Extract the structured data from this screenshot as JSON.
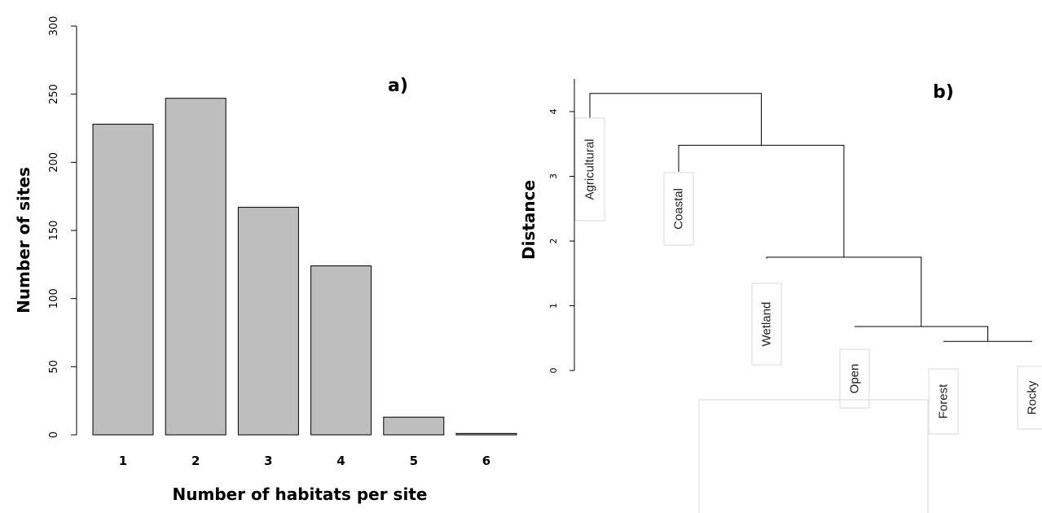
{
  "chart_data": [
    {
      "type": "bar",
      "panel_label": "a)",
      "categories": [
        "1",
        "2",
        "3",
        "4",
        "5",
        "6"
      ],
      "values": [
        228,
        247,
        167,
        124,
        13,
        1
      ],
      "xlabel": "Number of habitats per site",
      "ylabel": "Number of sites",
      "ylim": [
        0,
        300
      ],
      "yticks": [
        "0",
        "50",
        "100",
        "150",
        "200",
        "250",
        "300"
      ],
      "bar_color": "#bebebe",
      "grid": false
    },
    {
      "type": "dendrogram",
      "panel_label": "b)",
      "ylabel": "Distance",
      "ylim": [
        0,
        4
      ],
      "yticks": [
        "0",
        "1",
        "2",
        "3",
        "4"
      ],
      "leaves": [
        "Agricultural",
        "Coastal",
        "Wetland",
        "Open",
        "Forest",
        "Rocky"
      ],
      "merges": [
        {
          "left": "Forest",
          "right": "Rocky",
          "height": 0.45
        },
        {
          "left": "Open",
          "right": "Forest+Rocky",
          "height": 0.68
        },
        {
          "left": "Wetland",
          "right": "Open+Forest+Rocky",
          "height": 1.75
        },
        {
          "left": "Coastal",
          "right": "Wetland+Open+Forest+Rocky",
          "height": 3.48
        },
        {
          "left": "Agricultural",
          "right": "Coastal+Wetland+Open+Forest+Rocky",
          "height": 4.28
        }
      ],
      "leaf_heights": {
        "Agricultural": 3.9,
        "Coastal": 3.07,
        "Wetland": 1.73,
        "Open": 0.68,
        "Forest": 0.45,
        "Rocky": 0.45
      }
    }
  ]
}
